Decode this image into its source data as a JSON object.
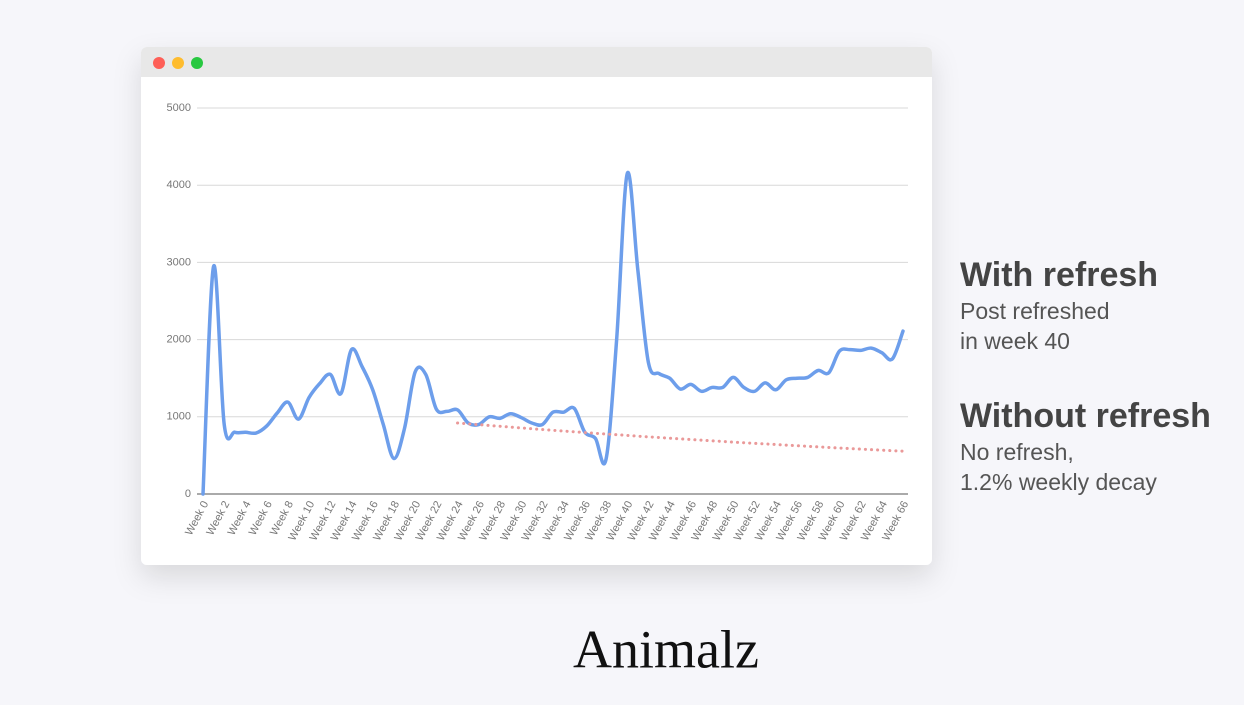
{
  "chart_data": {
    "type": "line",
    "categories": [
      "Week 0",
      null,
      "Week 2",
      null,
      "Week 4",
      null,
      "Week 6",
      null,
      "Week 8",
      null,
      "Week 10",
      null,
      "Week 12",
      null,
      "Week 14",
      null,
      "Week 16",
      null,
      "Week 18",
      null,
      "Week 20",
      null,
      "Week 22",
      null,
      "Week 24",
      null,
      "Week 26",
      null,
      "Week 28",
      null,
      "Week 30",
      null,
      "Week 32",
      null,
      "Week 34",
      null,
      "Week 36",
      null,
      "Week 38",
      null,
      "Week 40",
      null,
      "Week 42",
      null,
      "Week 44",
      null,
      "Week 46",
      null,
      "Week 48",
      null,
      "Week 50",
      null,
      "Week 52",
      null,
      "Week 54",
      null,
      "Week 56",
      null,
      "Week 58",
      null,
      "Week 60",
      null,
      "Week 62",
      null,
      "Week 64",
      null,
      "Week 66"
    ],
    "series": [
      {
        "name": "With refresh",
        "description": [
          "Post refreshed",
          "in week 40"
        ],
        "color": "#6d9eeb",
        "line_style": "smooth",
        "values": [
          0,
          2950,
          900,
          800,
          800,
          790,
          880,
          1050,
          1190,
          970,
          1250,
          1430,
          1550,
          1300,
          1870,
          1650,
          1350,
          900,
          460,
          850,
          1580,
          1550,
          1100,
          1070,
          1090,
          920,
          900,
          1000,
          980,
          1040,
          990,
          920,
          900,
          1060,
          1060,
          1110,
          800,
          720,
          450,
          2000,
          4150,
          2900,
          1700,
          1560,
          1500,
          1360,
          1420,
          1330,
          1380,
          1380,
          1510,
          1380,
          1330,
          1440,
          1350,
          1480,
          1500,
          1510,
          1600,
          1570,
          1850,
          1870,
          1860,
          1890,
          1830,
          1750,
          2110
        ]
      },
      {
        "name": "Without refresh",
        "description": [
          "No refresh,",
          "1.2% weekly decay"
        ],
        "color": "#ea9999",
        "line_style": "dotted",
        "values": [
          null,
          null,
          null,
          null,
          null,
          null,
          null,
          null,
          null,
          null,
          null,
          null,
          null,
          null,
          null,
          null,
          null,
          null,
          null,
          null,
          null,
          null,
          null,
          null,
          920,
          909,
          898,
          887,
          877,
          866,
          856,
          845,
          835,
          825,
          815,
          806,
          796,
          786,
          777,
          768,
          759,
          749,
          740,
          732,
          723,
          714,
          706,
          697,
          689,
          681,
          672,
          664,
          656,
          649,
          641,
          633,
          626,
          618,
          611,
          603,
          596,
          589,
          582,
          575,
          568,
          561,
          555
        ]
      }
    ],
    "ylim": [
      0,
      5000
    ],
    "yticks": [
      0,
      1000,
      2000,
      3000,
      4000,
      5000
    ],
    "grid": true
  },
  "brand": "Animalz"
}
